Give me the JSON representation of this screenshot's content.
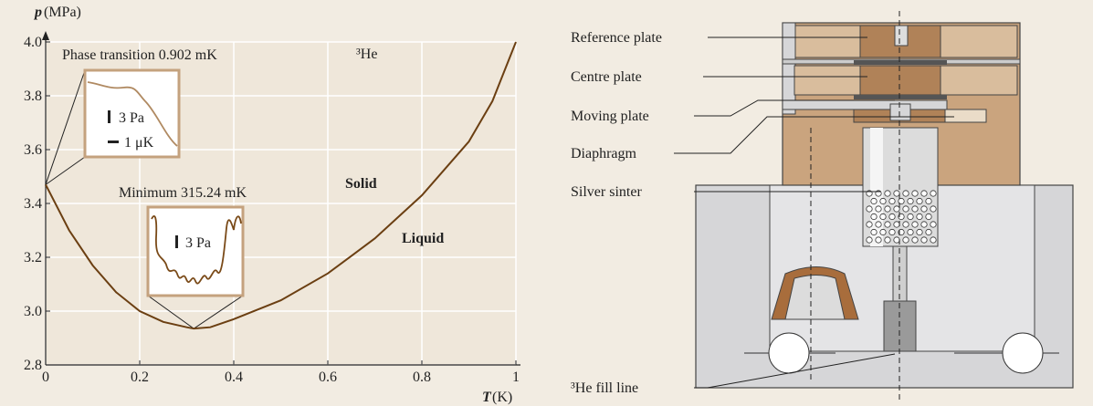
{
  "chart_data": {
    "type": "line",
    "y_label_symbol": "p",
    "y_label_unit": "(MPa)",
    "x_label_symbol": "T",
    "x_label_unit": "(K)",
    "x": [
      0,
      0.05,
      0.1,
      0.15,
      0.2,
      0.25,
      0.3,
      0.315,
      0.35,
      0.4,
      0.5,
      0.6,
      0.7,
      0.8,
      0.9,
      0.95,
      1.0
    ],
    "values": [
      3.47,
      3.3,
      3.17,
      3.07,
      3.0,
      2.96,
      2.94,
      2.935,
      2.94,
      2.97,
      3.04,
      3.14,
      3.27,
      3.43,
      3.63,
      3.78,
      4.0
    ],
    "color": "#6b3f12",
    "xlim": [
      0,
      1
    ],
    "ylim": [
      2.8,
      4.0
    ],
    "xticks": [
      0,
      0.2,
      0.4,
      0.6,
      0.8,
      1
    ],
    "yticks": [
      {
        "value": 2.8,
        "label": "2.8"
      },
      {
        "value": 3,
        "label": "3.0"
      },
      3.2,
      3.4,
      3.6,
      3.8,
      {
        "value": 4,
        "label": "4.0"
      }
    ],
    "grid": true,
    "annotations": {
      "phase": "Phase transition 0.902 mK",
      "he": "³He",
      "solid": "Solid",
      "liquid": "Liquid",
      "minimum": "Minimum 315.24 mK",
      "inset1_scale_p": "3 Pa",
      "inset1_scale_t": "1 μK",
      "inset2_scale_p": "3 Pa"
    }
  },
  "diagram": {
    "labels": [
      "Reference plate",
      "Centre plate",
      "Moving plate",
      "Diaphragm",
      "Silver sinter",
      "³He fill line"
    ]
  }
}
